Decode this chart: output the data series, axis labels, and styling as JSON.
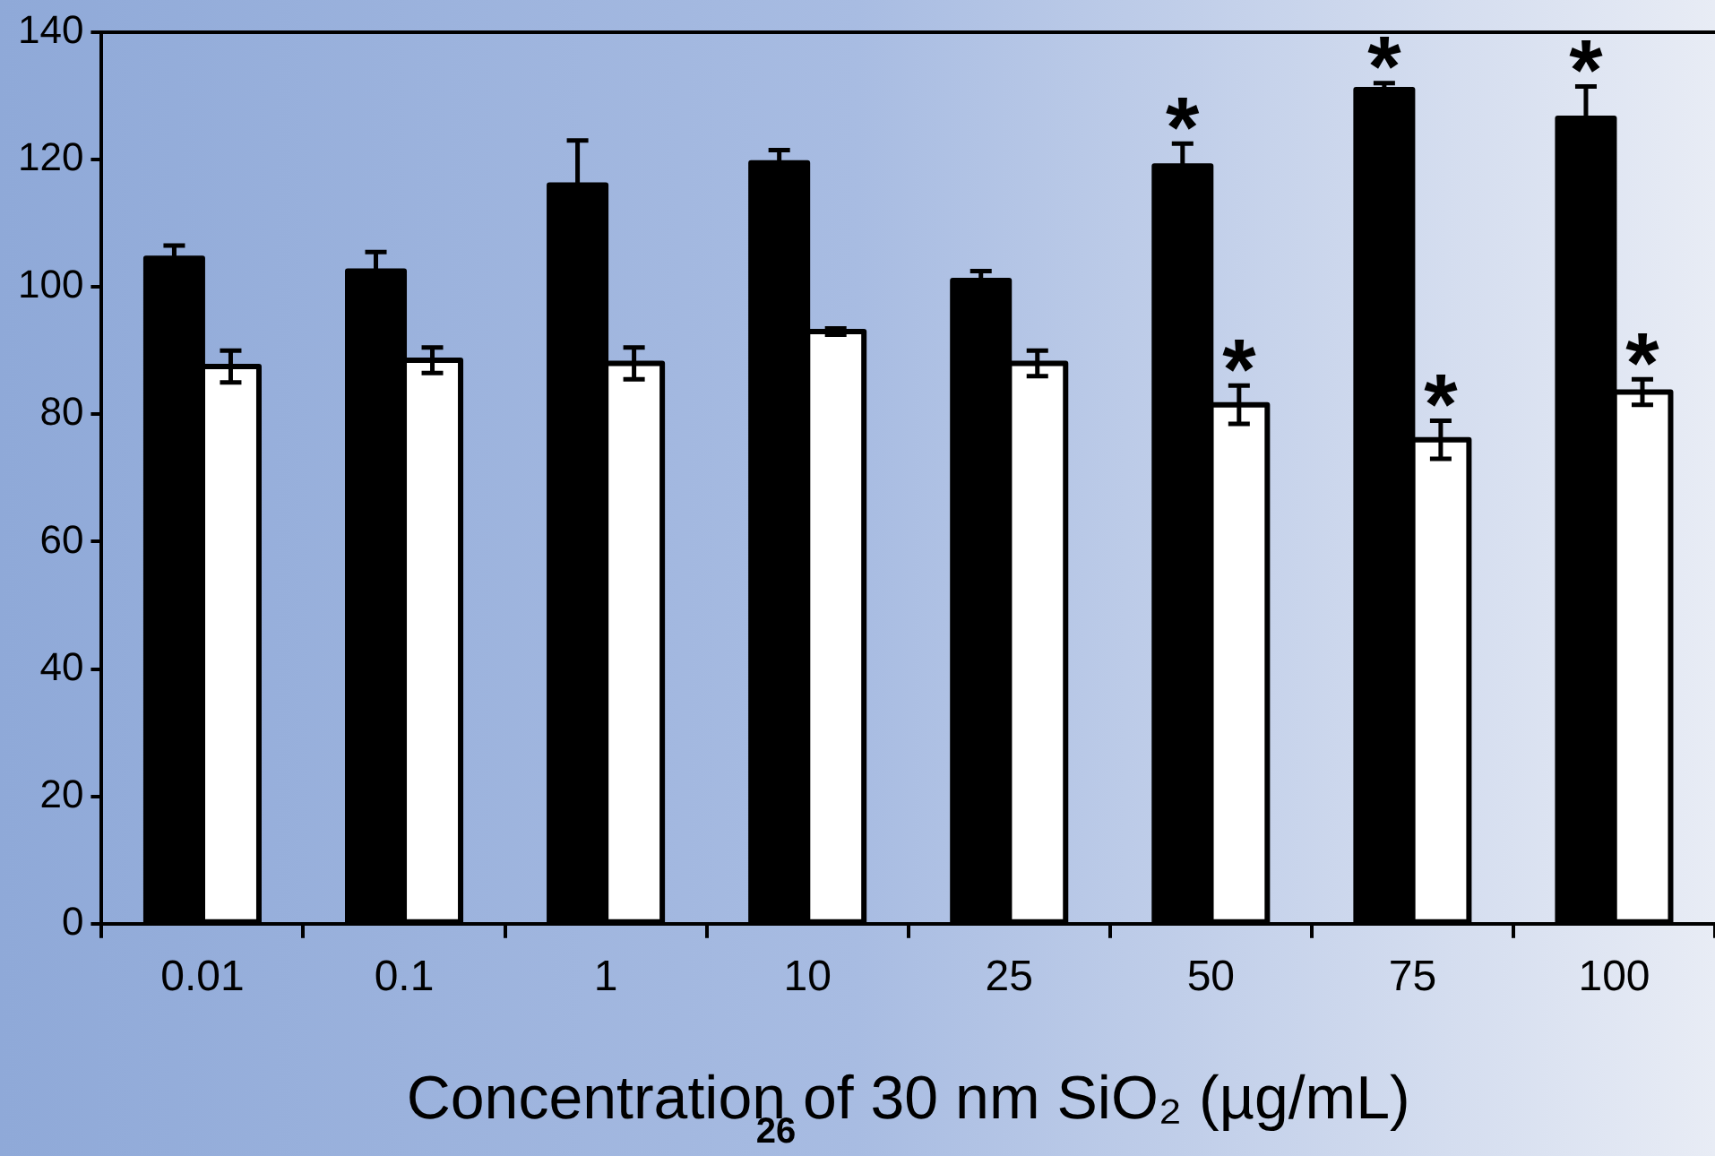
{
  "chart_data": {
    "type": "bar",
    "xlabel": "Concentration of 30 nm SiO₂ (µg/mL)",
    "categories": [
      "0.01",
      "0.1",
      "1",
      "10",
      "25",
      "50",
      "75",
      "100"
    ],
    "series": [
      {
        "color": "#000000",
        "values": [
          104.5,
          102.5,
          116,
          119.5,
          101,
          119,
          131,
          126.5
        ],
        "errors": [
          2,
          3,
          7,
          2,
          1.5,
          3.5,
          1,
          5
        ]
      },
      {
        "color": "#ffffff",
        "values": [
          87.5,
          88.5,
          88,
          93,
          88,
          81.5,
          76,
          83.5
        ],
        "errors": [
          2.5,
          2,
          2.5,
          0.5,
          2,
          3,
          3,
          2
        ]
      }
    ],
    "ylim": [
      0,
      140
    ],
    "yticks": [
      0,
      20,
      40,
      60,
      80,
      100,
      120,
      140
    ],
    "grid": false,
    "legend": false,
    "annotations": [
      {
        "text": "*",
        "x": "50",
        "y": 119
      },
      {
        "text": "*",
        "x": "75",
        "y": 131
      },
      {
        "text": "*",
        "x": "100",
        "y": 126.5
      },
      {
        "text": "*",
        "x": "50",
        "y": 81.5
      },
      {
        "text": "*",
        "x": "75",
        "y": 76
      },
      {
        "text": "*",
        "x": "100",
        "y": 83.5
      },
      "26"
    ]
  }
}
